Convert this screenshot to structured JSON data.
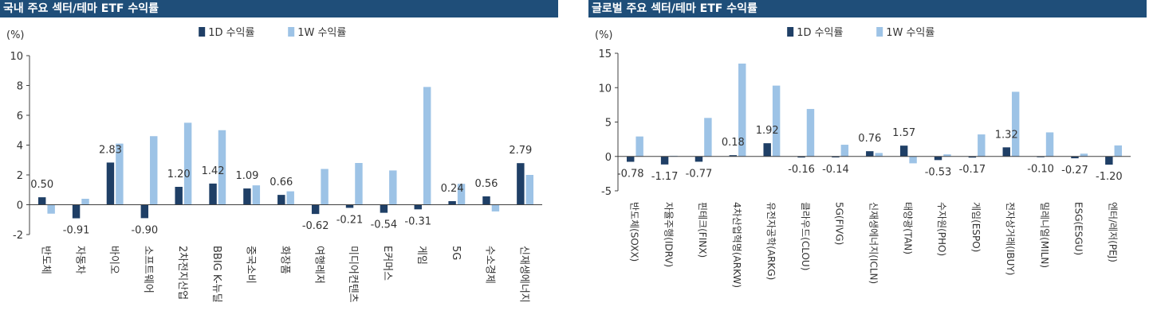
{
  "colors": {
    "header_bg": "#1f4e79",
    "series_1d": "#1f3f66",
    "series_1w": "#9dc3e6",
    "axis": "#404040",
    "text": "#333333"
  },
  "chart_data": [
    {
      "type": "bar",
      "title": "국내 주요 섹터/테마 ETF 수익률",
      "unit_label": "(%)",
      "ylim": [
        -2,
        10
      ],
      "yticks": [
        -2,
        0,
        2,
        4,
        6,
        8,
        10
      ],
      "legend_position": "top",
      "grid": false,
      "categories": [
        "반도체",
        "자동차",
        "바이오",
        "소프트웨어",
        "2차전지산업",
        "BBIG K-뉴딜",
        "중국소비",
        "화장품",
        "여행레저",
        "미디어컨텐츠",
        "E커머스",
        "게임",
        "5G",
        "수소경제",
        "신재생에너지"
      ],
      "series": [
        {
          "name": "1D 수익률",
          "values": [
            0.5,
            -0.91,
            2.83,
            -0.9,
            1.2,
            1.42,
            1.09,
            0.66,
            -0.62,
            -0.21,
            -0.54,
            -0.31,
            0.24,
            0.56,
            2.79
          ]
        },
        {
          "name": "1W 수익률",
          "values": [
            -0.6,
            0.4,
            4.1,
            4.6,
            5.5,
            5.0,
            1.3,
            0.9,
            2.4,
            2.8,
            2.3,
            7.9,
            1.4,
            -0.45,
            2.0
          ]
        }
      ],
      "data_labels": [
        "0.50",
        "-0.91",
        "2.83",
        "-0.90",
        "1.20",
        "1.42",
        "1.09",
        "0.66",
        "-0.62",
        "-0.21",
        "-0.54",
        "-0.31",
        "0.24",
        "0.56",
        "2.79"
      ]
    },
    {
      "type": "bar",
      "title": "글로벌 주요 섹터/테마 ETF 수익률",
      "unit_label": "(%)",
      "ylim": [
        -5,
        15
      ],
      "yticks": [
        -5,
        0,
        5,
        10,
        15
      ],
      "legend_position": "top",
      "grid": false,
      "categories": [
        "반도체(SOXX)",
        "자율주행(IDRV)",
        "핀테크(FINX)",
        "4차산업혁명(ARKW)",
        "유전자공학(ARKG)",
        "클라우드(CLOU)",
        "5G(FIVG)",
        "신재생에너지(ICLN)",
        "태양광(TAN)",
        "수자원(PHO)",
        "게임(ESPO)",
        "전자상거래(IBUY)",
        "밀레니얼(MILN)",
        "ESG(ESGU)",
        "엔터/레저(PEJ)"
      ],
      "series": [
        {
          "name": "1D 수익률",
          "values": [
            -0.78,
            -1.17,
            -0.77,
            0.18,
            1.92,
            -0.16,
            -0.14,
            0.76,
            1.57,
            -0.53,
            -0.17,
            1.32,
            -0.1,
            -0.27,
            -1.2
          ]
        },
        {
          "name": "1W 수익률",
          "values": [
            2.9,
            0.1,
            5.6,
            13.5,
            10.3,
            6.9,
            1.7,
            0.5,
            -1.0,
            0.3,
            3.2,
            9.4,
            3.5,
            0.4,
            1.6
          ]
        }
      ],
      "data_labels": [
        "-0.78",
        "-1.17",
        "-0.77",
        "0.18",
        "1.92",
        "-0.16",
        "-0.14",
        "0.76",
        "1.57",
        "-0.53",
        "-0.17",
        "1.32",
        "-0.10",
        "-0.27",
        "-1.20"
      ]
    }
  ]
}
